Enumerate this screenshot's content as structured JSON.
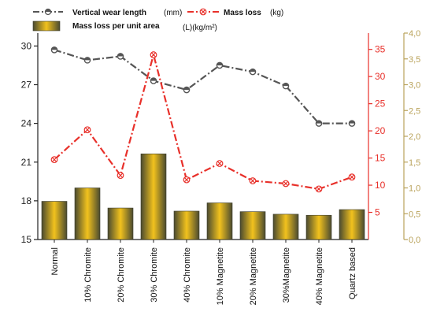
{
  "chart_data": {
    "type": "bar",
    "categories": [
      "Normal",
      "10% Chromite",
      "20% Chromite",
      "30% Chromite",
      "40% Chromite",
      "10% Magnetite",
      "20% Magnetite",
      "30%Magnetite",
      "40% Magnetite",
      "Quartz based"
    ],
    "legend": [
      {
        "key": "vwl",
        "label": "Vertical wear length",
        "unit": "(mm)",
        "marker": "line-circle-half",
        "color": "#555555"
      },
      {
        "key": "ml",
        "label": "Mass loss",
        "unit": "(kg)",
        "marker": "line-x-circle",
        "color": "#e8302a"
      },
      {
        "key": "mlpua",
        "label": "Mass loss per unit area",
        "unit": "(L)(kg/m²)",
        "marker": "bar",
        "color": "#e2b423"
      }
    ],
    "series": [
      {
        "name": "Vertical wear length",
        "unit": "(mm)",
        "type": "line",
        "axis": "left",
        "color": "#555555",
        "values": [
          29.7,
          28.9,
          29.2,
          27.3,
          26.6,
          28.5,
          28.0,
          26.9,
          24.0,
          24.0
        ]
      },
      {
        "name": "Mass loss",
        "unit": "(kg)",
        "type": "line",
        "axis": "right",
        "color": "#e8302a",
        "values": [
          14.7,
          20.2,
          11.8,
          34.0,
          11.0,
          14.0,
          10.8,
          10.3,
          9.3,
          11.5
        ]
      },
      {
        "name": "Mass loss per unit area",
        "unit": "(L)(kg/m²)",
        "type": "bar",
        "axis": "far-right",
        "color": "#e2b423",
        "values": [
          0.74,
          1.0,
          0.61,
          1.66,
          0.55,
          0.71,
          0.54,
          0.49,
          0.47,
          0.58
        ]
      }
    ],
    "axes": {
      "left": {
        "ylim": [
          15,
          31
        ],
        "ticks": [
          15,
          18,
          21,
          24,
          27,
          30
        ],
        "labels": [
          "15",
          "18",
          "21",
          "24",
          "27",
          "30"
        ],
        "color": "#222222"
      },
      "right": {
        "ylim": [
          0,
          38
        ],
        "ticks": [
          5,
          10,
          15,
          20,
          25,
          30,
          35
        ],
        "labels": [
          "5",
          "10",
          "15",
          "20",
          "25",
          "30",
          "35"
        ],
        "color": "#e8302a"
      },
      "far_right": {
        "ylim": [
          0,
          4.0
        ],
        "ticks": [
          0,
          0.5,
          1.0,
          1.5,
          2.0,
          2.5,
          3.0,
          3.5,
          4.0
        ],
        "labels": [
          "0,0",
          "0,5",
          "1,0",
          "1,5",
          "2,0",
          "2,5",
          "3,0",
          "3,5",
          "4,0"
        ],
        "color": "#b9a25a"
      }
    },
    "grid": false,
    "legend_placement": "top"
  }
}
